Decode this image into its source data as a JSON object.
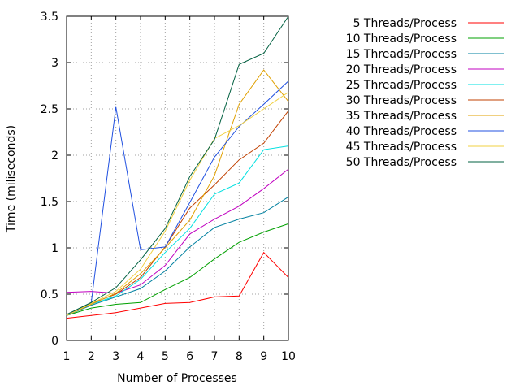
{
  "chart_data": {
    "type": "line",
    "title": "",
    "xlabel": "Number of Processes",
    "ylabel": "Time (miliseconds)",
    "xlim": [
      1,
      10
    ],
    "ylim": [
      0,
      3.5
    ],
    "grid": true,
    "legend_position": "top-right, outside plot",
    "x": [
      1,
      2,
      3,
      4,
      5,
      6,
      7,
      8,
      9,
      10
    ],
    "x_ticks": [
      "1",
      "2",
      "3",
      "4",
      "5",
      "6",
      "7",
      "8",
      "9",
      "10"
    ],
    "y_tick_values": [
      0,
      0.5,
      1,
      1.5,
      2,
      2.5,
      3,
      3.5
    ],
    "y_ticks": [
      "0",
      "0.5",
      "1",
      "1.5",
      "2",
      "2.5",
      "3",
      "3.5"
    ],
    "series": [
      {
        "name": "5 Threads/Process",
        "color": "#ff0000",
        "values": [
          0.24,
          0.27,
          0.3,
          0.35,
          0.4,
          0.41,
          0.47,
          0.48,
          0.95,
          0.68
        ]
      },
      {
        "name": "10 Threads/Process",
        "color": "#00a000",
        "values": [
          0.27,
          0.35,
          0.39,
          0.41,
          0.55,
          0.68,
          0.88,
          1.06,
          1.17,
          1.26
        ]
      },
      {
        "name": "15 Threads/Process",
        "color": "#0080a0",
        "values": [
          0.27,
          0.38,
          0.47,
          0.56,
          0.75,
          1.01,
          1.22,
          1.31,
          1.38,
          1.55
        ]
      },
      {
        "name": "20 Threads/Process",
        "color": "#c000c0",
        "values": [
          0.52,
          0.53,
          0.51,
          0.6,
          0.81,
          1.15,
          1.31,
          1.45,
          1.64,
          1.85
        ]
      },
      {
        "name": "25 Threads/Process",
        "color": "#00e0e0",
        "values": [
          0.27,
          0.39,
          0.48,
          0.66,
          0.95,
          1.21,
          1.58,
          1.7,
          2.06,
          2.1
        ]
      },
      {
        "name": "30 Threads/Process",
        "color": "#c04000",
        "values": [
          0.28,
          0.4,
          0.5,
          0.68,
          1.01,
          1.43,
          1.68,
          1.95,
          2.13,
          2.48
        ]
      },
      {
        "name": "35 Threads/Process",
        "color": "#e0a000",
        "values": [
          0.27,
          0.39,
          0.51,
          0.72,
          1.0,
          1.3,
          1.78,
          2.55,
          2.92,
          2.58
        ]
      },
      {
        "name": "40 Threads/Process",
        "color": "#2050e0",
        "values": [
          0.27,
          0.41,
          2.52,
          0.98,
          1.01,
          1.49,
          1.98,
          2.31,
          2.55,
          2.8
        ]
      },
      {
        "name": "45 Threads/Process",
        "color": "#f0d040",
        "values": [
          0.27,
          0.4,
          0.53,
          0.77,
          1.18,
          1.73,
          2.18,
          2.32,
          2.5,
          2.68
        ]
      },
      {
        "name": "50 Threads/Process",
        "color": "#006040",
        "values": [
          0.28,
          0.41,
          0.57,
          0.87,
          1.21,
          1.77,
          2.17,
          2.98,
          3.1,
          3.5
        ]
      }
    ]
  }
}
